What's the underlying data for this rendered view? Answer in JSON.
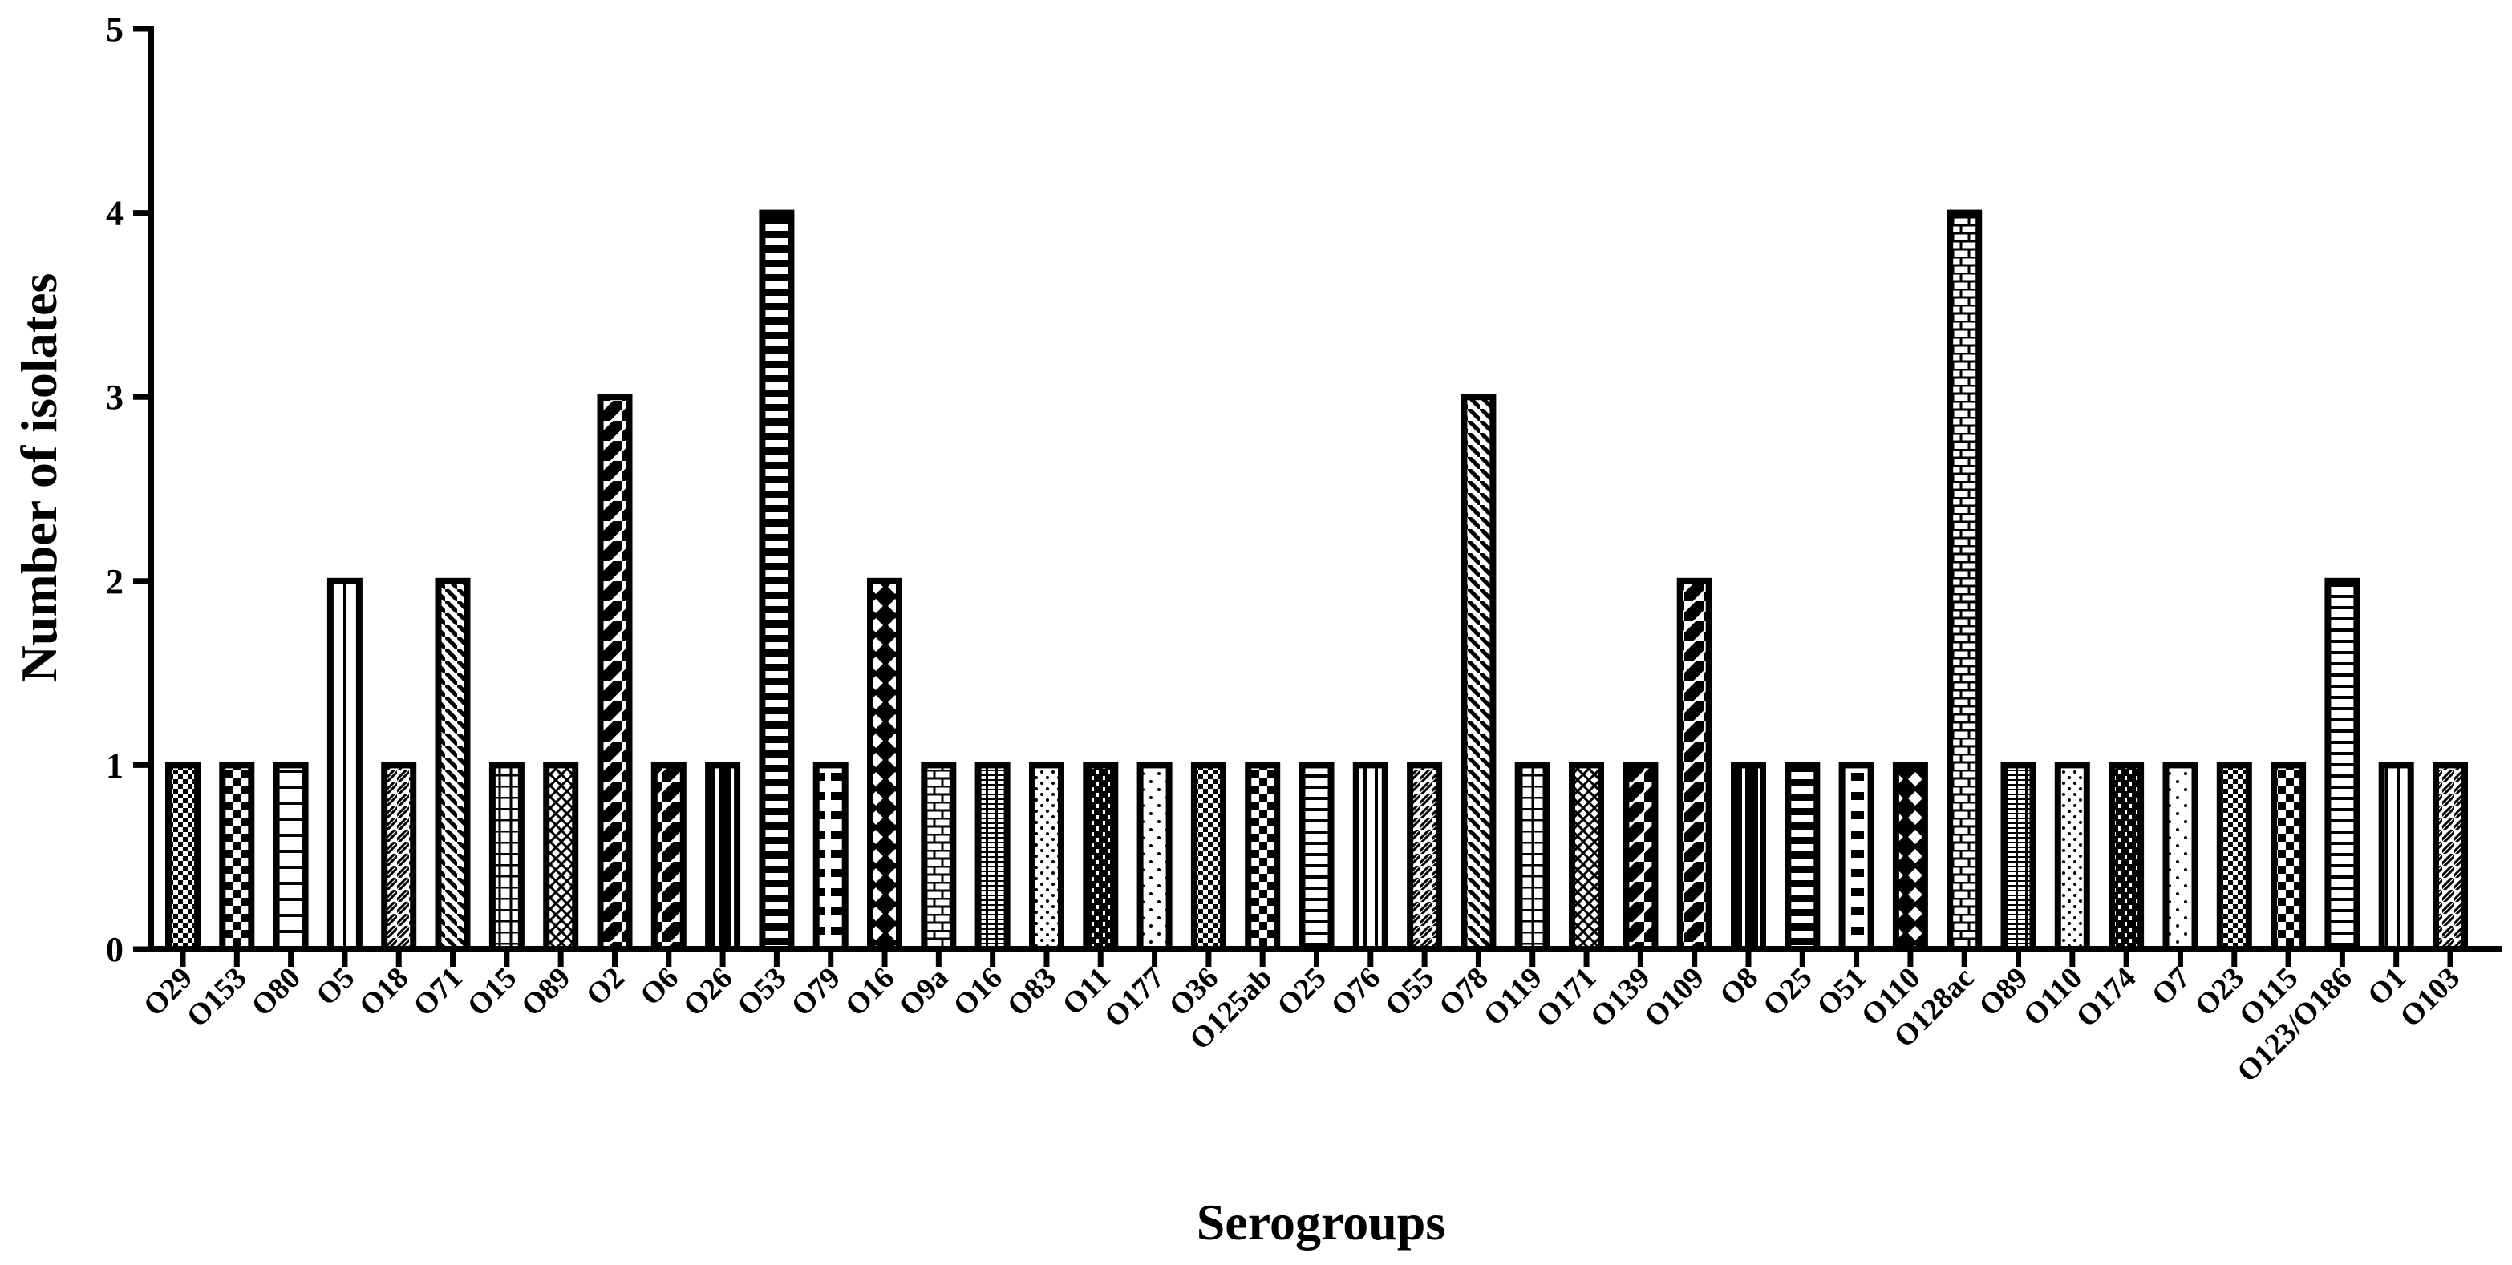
{
  "chart_data": {
    "type": "bar",
    "title": "",
    "xlabel": "Serogroups",
    "ylabel": "Number of isolates",
    "ylim": [
      0,
      5
    ],
    "yticks": [
      "0",
      "1",
      "2",
      "3",
      "4",
      "5"
    ],
    "grid": false,
    "legend": "none",
    "categories": [
      "O29",
      "O153",
      "O80",
      "O5",
      "O18",
      "O71",
      "O15",
      "O89",
      "O2",
      "O6",
      "O26",
      "O53",
      "O79",
      "O16",
      "O9a",
      "O16",
      "O83",
      "O11",
      "O177",
      "O36",
      "O125ab",
      "O25",
      "O76",
      "O55",
      "O78",
      "O119",
      "O171",
      "O139",
      "O109",
      "O8",
      "O25",
      "O51",
      "O110",
      "O128ac",
      "O89",
      "O110",
      "O174",
      "O7",
      "O23",
      "O115",
      "O123/O186",
      "O1",
      "O103"
    ],
    "values": [
      1,
      1,
      1,
      2,
      1,
      2,
      1,
      1,
      3,
      1,
      1,
      4,
      1,
      2,
      1,
      1,
      1,
      1,
      1,
      1,
      1,
      1,
      1,
      1,
      3,
      1,
      1,
      1,
      2,
      1,
      1,
      1,
      1,
      4,
      1,
      1,
      1,
      1,
      1,
      1,
      2,
      1,
      1
    ],
    "patterns": [
      "checker-fine",
      "checker",
      "hlines-wide",
      "vlines-wide",
      "diag-fwd",
      "diag-back",
      "grid",
      "diag-cross",
      "diag-thick",
      "diag-thick",
      "vsolid",
      "hlines-thick",
      "dashes",
      "diamonds",
      "bricks",
      "hgrid",
      "dots",
      "vdash",
      "dots-sparse",
      "checker-fine",
      "checker",
      "hlines",
      "vlines",
      "diag-fwd",
      "diag-back",
      "grid",
      "diag-cross",
      "diag-thick",
      "diag-thick",
      "vsolid",
      "hlines-thick",
      "dashes",
      "diamonds",
      "bricks",
      "hgrid",
      "dots",
      "vdash",
      "dots-sparse",
      "checker-fine",
      "checker",
      "hlines",
      "vlines",
      "diag-fwd"
    ],
    "colors": {
      "ink": "#000000",
      "fill": "#ffffff"
    }
  }
}
